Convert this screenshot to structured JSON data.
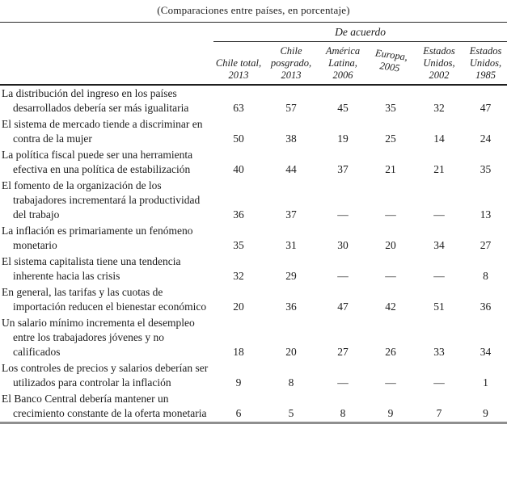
{
  "figure": {
    "subtitle": "(Comparaciones entre países, en porcentaje)",
    "group_header": "De acuerdo",
    "columns": [
      "Chile total, 2013",
      "Chile posgrado, 2013",
      "América Latina, 2006",
      "Europa, 2005",
      "Estados Unidos, 2002",
      "Estados Unidos, 1985"
    ],
    "rows": [
      {
        "statement": "La distribución del ingreso en los países desarrollados debería ser más igualitaria",
        "values": [
          63,
          57,
          45,
          35,
          32,
          47
        ]
      },
      {
        "statement": "El sistema de mercado tiende a discriminar en contra de la mujer",
        "values": [
          50,
          38,
          19,
          25,
          14,
          24
        ]
      },
      {
        "statement": "La política fiscal puede ser una herramienta efectiva en una política de estabilización",
        "values": [
          40,
          44,
          37,
          21,
          21,
          35
        ]
      },
      {
        "statement": "El fomento de la organización de los trabajadores incrementará la productividad del trabajo",
        "values": [
          36,
          37,
          "—",
          "—",
          "—",
          13
        ]
      },
      {
        "statement": "La inflación es primariamente un fenómeno monetario",
        "values": [
          35,
          31,
          30,
          20,
          34,
          27
        ]
      },
      {
        "statement": "El sistema capitalista tiene una tendencia inherente hacia las crisis",
        "values": [
          32,
          29,
          "—",
          "—",
          "—",
          8
        ]
      },
      {
        "statement": "En general, las tarifas y las cuotas de importación reducen el bienestar económico",
        "values": [
          20,
          36,
          47,
          42,
          51,
          36
        ]
      },
      {
        "statement": "Un salario mínimo incrementa el desempleo entre los trabajadores jóvenes y no calificados",
        "values": [
          18,
          20,
          27,
          26,
          33,
          34
        ]
      },
      {
        "statement": "Los controles de precios y salarios deberían ser utilizados para controlar la inflación",
        "values": [
          9,
          8,
          "—",
          "—",
          "—",
          1
        ]
      },
      {
        "statement": "El Banco Central debería mantener un crecimiento constante de la oferta monetaria",
        "values": [
          6,
          5,
          8,
          9,
          7,
          9
        ]
      }
    ]
  }
}
